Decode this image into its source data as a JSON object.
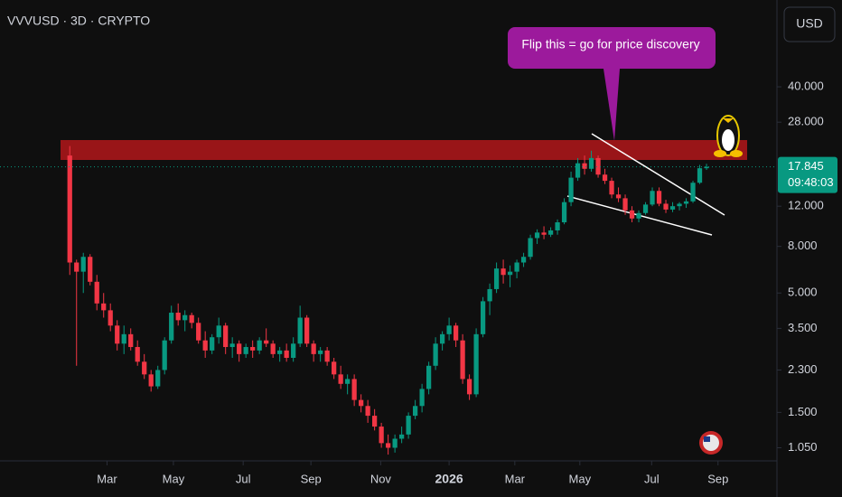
{
  "chart_data": {
    "type": "candlestick",
    "title": "VVVUSD · 3D · CRYPTO",
    "currency": "USD",
    "annotation": "Flip this = go for price discovery",
    "log_scale": true,
    "ylim": [
      0.92,
      96
    ],
    "xlim": [
      -10.3,
      104.4
    ],
    "up_color": "#089981",
    "down_color": "#f23645",
    "yticks": [
      {
        "value": 40,
        "label": "40.000"
      },
      {
        "value": 28,
        "label": "28.000"
      },
      {
        "value": 12,
        "label": "12.000"
      },
      {
        "value": 8,
        "label": "8.000"
      },
      {
        "value": 5,
        "label": "5.000"
      },
      {
        "value": 3.5,
        "label": "3.500"
      },
      {
        "value": 2.3,
        "label": "2.300"
      },
      {
        "value": 1.5,
        "label": "1.500"
      },
      {
        "value": 1.05,
        "label": "1.050"
      }
    ],
    "xticks": [
      {
        "value": 5.5,
        "label": "Mar"
      },
      {
        "value": 15.3,
        "label": "May"
      },
      {
        "value": 25.6,
        "label": "Jul"
      },
      {
        "value": 35.6,
        "label": "Sep"
      },
      {
        "value": 45.9,
        "label": "Nov"
      },
      {
        "value": 56,
        "label": "2026"
      },
      {
        "value": 65.7,
        "label": "Mar"
      },
      {
        "value": 75.3,
        "label": "May"
      },
      {
        "value": 85.9,
        "label": "Jul"
      },
      {
        "value": 95.7,
        "label": "Sep"
      }
    ],
    "last_price": 17.845,
    "countdown": "09:48:03",
    "ohlc": [
      [
        20,
        22,
        6,
        6.8
      ],
      [
        6.8,
        7,
        2.4,
        6.2
      ],
      [
        6.2,
        7.5,
        5,
        7.2
      ],
      [
        7.2,
        7.4,
        5.4,
        5.6
      ],
      [
        5.6,
        6,
        4.2,
        4.5
      ],
      [
        4.5,
        5,
        3.9,
        4.2
      ],
      [
        4.2,
        4.5,
        3.4,
        3.6
      ],
      [
        3.6,
        3.8,
        2.8,
        3.0
      ],
      [
        3.0,
        3.6,
        2.7,
        3.3
      ],
      [
        3.3,
        3.5,
        2.8,
        2.9
      ],
      [
        2.9,
        3.1,
        2.4,
        2.5
      ],
      [
        2.5,
        2.7,
        2.1,
        2.2
      ],
      [
        2.2,
        2.3,
        1.85,
        1.95
      ],
      [
        1.95,
        2.4,
        1.9,
        2.3
      ],
      [
        2.3,
        3.2,
        2.2,
        3.1
      ],
      [
        3.1,
        4.4,
        3.0,
        4.1
      ],
      [
        4.1,
        4.5,
        3.6,
        3.8
      ],
      [
        3.8,
        4.2,
        3.4,
        4.0
      ],
      [
        4.0,
        4.1,
        3.5,
        3.7
      ],
      [
        3.7,
        3.9,
        3.0,
        3.1
      ],
      [
        3.1,
        3.4,
        2.6,
        2.8
      ],
      [
        2.8,
        3.3,
        2.7,
        3.2
      ],
      [
        3.2,
        3.9,
        3.0,
        3.6
      ],
      [
        3.6,
        3.7,
        2.7,
        2.9
      ],
      [
        2.9,
        3.2,
        2.6,
        3.0
      ],
      [
        3.0,
        3.1,
        2.5,
        2.7
      ],
      [
        2.7,
        3.0,
        2.6,
        2.9
      ],
      [
        2.9,
        3.1,
        2.6,
        2.8
      ],
      [
        2.8,
        3.2,
        2.7,
        3.1
      ],
      [
        3.1,
        3.5,
        2.9,
        3.0
      ],
      [
        3.0,
        3.1,
        2.6,
        2.7
      ],
      [
        2.7,
        2.9,
        2.5,
        2.8
      ],
      [
        2.8,
        3.0,
        2.5,
        2.6
      ],
      [
        2.6,
        3.2,
        2.5,
        3.0
      ],
      [
        3.0,
        4.4,
        2.9,
        3.9
      ],
      [
        3.9,
        4.0,
        2.9,
        3.0
      ],
      [
        3.0,
        3.1,
        2.5,
        2.7
      ],
      [
        2.7,
        2.9,
        2.5,
        2.8
      ],
      [
        2.8,
        2.9,
        2.4,
        2.5
      ],
      [
        2.5,
        2.6,
        2.1,
        2.2
      ],
      [
        2.2,
        2.4,
        1.9,
        2.0
      ],
      [
        2.0,
        2.2,
        1.8,
        2.1
      ],
      [
        2.1,
        2.2,
        1.6,
        1.7
      ],
      [
        1.7,
        1.8,
        1.5,
        1.6
      ],
      [
        1.6,
        1.7,
        1.35,
        1.45
      ],
      [
        1.45,
        1.55,
        1.25,
        1.3
      ],
      [
        1.3,
        1.35,
        1.05,
        1.1
      ],
      [
        1.1,
        1.2,
        0.98,
        1.05
      ],
      [
        1.05,
        1.2,
        1.0,
        1.15
      ],
      [
        1.15,
        1.3,
        1.1,
        1.2
      ],
      [
        1.2,
        1.5,
        1.15,
        1.45
      ],
      [
        1.45,
        1.7,
        1.4,
        1.6
      ],
      [
        1.6,
        2.0,
        1.5,
        1.9
      ],
      [
        1.9,
        2.5,
        1.8,
        2.4
      ],
      [
        2.4,
        3.2,
        2.3,
        3.0
      ],
      [
        3.0,
        3.4,
        2.8,
        3.3
      ],
      [
        3.3,
        3.9,
        3.1,
        3.6
      ],
      [
        3.6,
        3.7,
        2.9,
        3.1
      ],
      [
        3.1,
        3.3,
        2.0,
        2.1
      ],
      [
        2.1,
        2.2,
        1.7,
        1.8
      ],
      [
        1.8,
        3.5,
        1.75,
        3.3
      ],
      [
        3.3,
        4.8,
        3.2,
        4.6
      ],
      [
        4.6,
        5.5,
        4.0,
        5.2
      ],
      [
        5.2,
        6.8,
        5.0,
        6.4
      ],
      [
        6.4,
        7.0,
        5.5,
        6.0
      ],
      [
        6.0,
        6.6,
        5.3,
        6.2
      ],
      [
        6.2,
        7.0,
        5.8,
        6.8
      ],
      [
        6.8,
        7.5,
        6.5,
        7.2
      ],
      [
        7.2,
        9.0,
        7.0,
        8.7
      ],
      [
        8.7,
        9.5,
        8.2,
        9.2
      ],
      [
        9.2,
        9.8,
        8.6,
        9.0
      ],
      [
        9.0,
        9.7,
        8.8,
        9.4
      ],
      [
        9.4,
        10.5,
        9.0,
        10.2
      ],
      [
        10.2,
        13,
        10,
        12.5
      ],
      [
        12.5,
        17,
        12,
        16
      ],
      [
        16,
        19.5,
        15.5,
        18.5
      ],
      [
        18.5,
        20,
        16.5,
        17.5
      ],
      [
        17.5,
        21,
        17,
        19.5
      ],
      [
        19.5,
        20,
        16,
        16.5
      ],
      [
        16.5,
        17.5,
        15,
        15.5
      ],
      [
        15.5,
        16,
        13,
        13.5
      ],
      [
        13.5,
        14.5,
        12.5,
        13
      ],
      [
        13,
        13.5,
        11,
        11.5
      ],
      [
        11.5,
        12,
        10.2,
        10.6
      ],
      [
        10.6,
        11.5,
        10.2,
        11.2
      ],
      [
        11.2,
        12.5,
        11,
        12.2
      ],
      [
        12.2,
        14.5,
        12,
        14
      ],
      [
        14,
        14.5,
        12,
        12.3
      ],
      [
        12.3,
        12.8,
        11.2,
        11.6
      ],
      [
        11.6,
        12.5,
        11.3,
        12
      ],
      [
        12,
        12.5,
        11.5,
        12.3
      ],
      [
        12.3,
        13,
        11.8,
        12.6
      ],
      [
        12.6,
        15.5,
        12.4,
        15.2
      ],
      [
        15.2,
        18.2,
        15,
        17.6
      ],
      [
        17.6,
        18.4,
        17.3,
        17.845
      ]
    ]
  }
}
